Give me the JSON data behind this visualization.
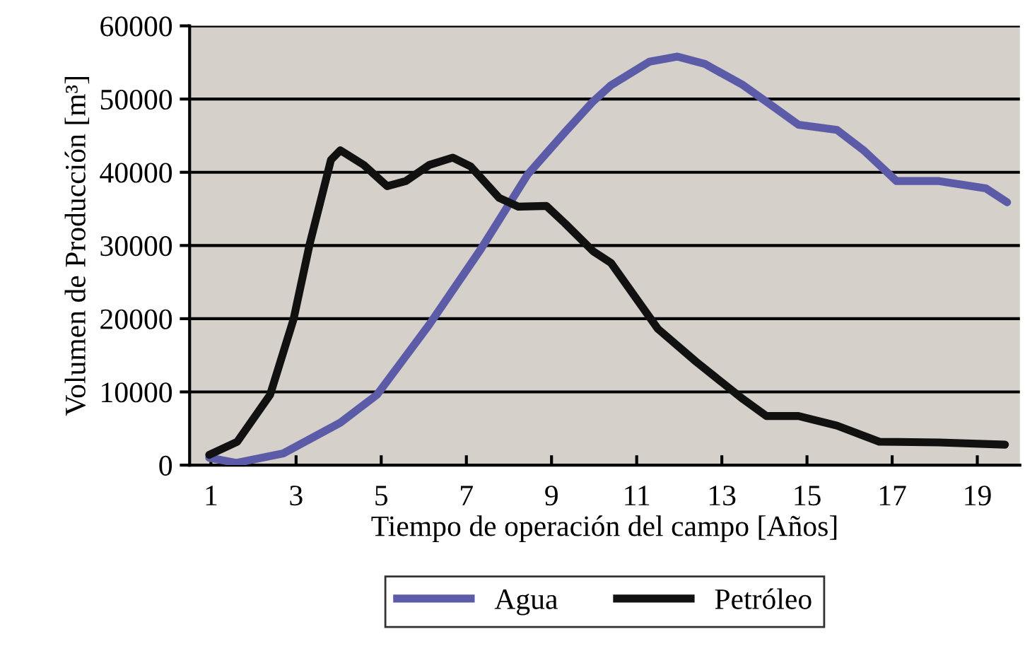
{
  "chart_data": {
    "type": "line",
    "xlabel": "Tiempo de operación del campo [Años]",
    "ylabel": "Volumen de Producción [m³]",
    "series": [
      {
        "name": "Agua",
        "color": "#5b5ba8",
        "x": [
          0.96,
          1.6,
          2.7,
          4.04,
          4.9,
          6.13,
          7.34,
          8.44,
          9.32,
          9.98,
          10.4,
          11.3,
          11.96,
          12.6,
          13.5,
          14.2,
          14.8,
          15.7,
          16.35,
          17.1,
          18.1,
          19.2,
          19.7
        ],
        "values": [
          1000,
          300,
          1600,
          5800,
          9600,
          19200,
          29500,
          39700,
          45500,
          49700,
          51900,
          55100,
          55800,
          54800,
          51900,
          49000,
          46500,
          45800,
          42900,
          38800,
          38800,
          37800,
          35900
        ]
      },
      {
        "name": "Petróleo",
        "color": "#111111",
        "x": [
          0.96,
          1.62,
          2.39,
          2.94,
          3.32,
          3.82,
          4.04,
          4.59,
          5.14,
          5.58,
          6.13,
          6.68,
          7.1,
          7.77,
          8.22,
          8.88,
          9.32,
          9.98,
          10.4,
          11.5,
          12.4,
          13.5,
          14.05,
          14.8,
          15.7,
          16.7,
          18.1,
          19.65
        ],
        "values": [
          1400,
          3200,
          9600,
          19900,
          30200,
          41700,
          43000,
          41000,
          38100,
          38800,
          41000,
          42000,
          40800,
          36500,
          35300,
          35400,
          33000,
          29200,
          27600,
          18600,
          14100,
          9000,
          6700,
          6700,
          5400,
          3200,
          3100,
          2800
        ]
      }
    ],
    "xlim": [
      0.5,
      20
    ],
    "xticks": [
      1,
      3,
      5,
      7,
      9,
      11,
      13,
      15,
      17,
      19
    ],
    "ylim": [
      0,
      60000
    ],
    "yticks": [
      0,
      10000,
      20000,
      30000,
      40000,
      50000,
      60000
    ],
    "grid": "y",
    "legend": "bottom",
    "marker": "none",
    "line_style": "solid"
  }
}
